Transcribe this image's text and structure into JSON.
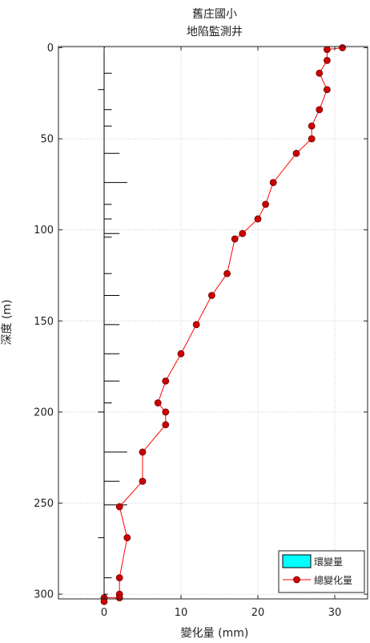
{
  "chart_data": {
    "type": "line",
    "title": [
      "舊庄國小",
      "地陷監測井"
    ],
    "xlabel": "變化量 (mm)",
    "ylabel": "深度 (m)",
    "xlim": [
      -6,
      35
    ],
    "ylim": [
      305,
      0
    ],
    "y_reversed": true,
    "xticks": [
      0,
      10,
      20,
      30
    ],
    "yticks": [
      0,
      50,
      100,
      150,
      200,
      250,
      300
    ],
    "grid": true,
    "legend": {
      "position": "bottom-right",
      "entries": [
        "環變量",
        "總變化量"
      ]
    },
    "colors": {
      "ring_bar": "#00ffff",
      "total_line": "#ff0000",
      "total_marker": "#cc0000",
      "ring_stroke": "#000000"
    },
    "series": [
      {
        "name": "環變量",
        "type": "bar",
        "depths": [
          0,
          14,
          23,
          34,
          43,
          58,
          74,
          86,
          94,
          102,
          104,
          124,
          136,
          152,
          168,
          183,
          195,
          200,
          222,
          238,
          251,
          269,
          291,
          300,
          302,
          304
        ],
        "values": [
          0.1,
          1.0,
          -0.8,
          1.0,
          1.0,
          2.0,
          3.0,
          1.0,
          1.0,
          2.0,
          1.0,
          1.0,
          2.0,
          2.0,
          2.0,
          2.0,
          1.0,
          -0.8,
          3.0,
          2.0,
          3.0,
          -0.8,
          1.0,
          0.5,
          0.3,
          0.0
        ]
      },
      {
        "name": "總變化量",
        "type": "line",
        "points": [
          [
            31,
            0
          ],
          [
            29,
            1
          ],
          [
            29,
            7
          ],
          [
            28,
            14
          ],
          [
            29,
            23
          ],
          [
            28,
            34
          ],
          [
            27,
            43
          ],
          [
            27,
            50
          ],
          [
            25,
            58
          ],
          [
            22,
            74
          ],
          [
            21,
            86
          ],
          [
            20,
            94
          ],
          [
            18,
            102
          ],
          [
            17,
            105
          ],
          [
            16,
            124
          ],
          [
            14,
            136
          ],
          [
            12,
            152
          ],
          [
            10,
            168
          ],
          [
            8,
            183
          ],
          [
            7,
            195
          ],
          [
            8,
            200
          ],
          [
            8,
            207
          ],
          [
            5,
            222
          ],
          [
            5,
            238
          ],
          [
            2,
            252
          ],
          [
            3,
            269
          ],
          [
            2,
            291
          ],
          [
            2,
            300
          ],
          [
            2,
            302
          ],
          [
            0,
            302
          ],
          [
            0,
            304
          ]
        ]
      }
    ]
  }
}
